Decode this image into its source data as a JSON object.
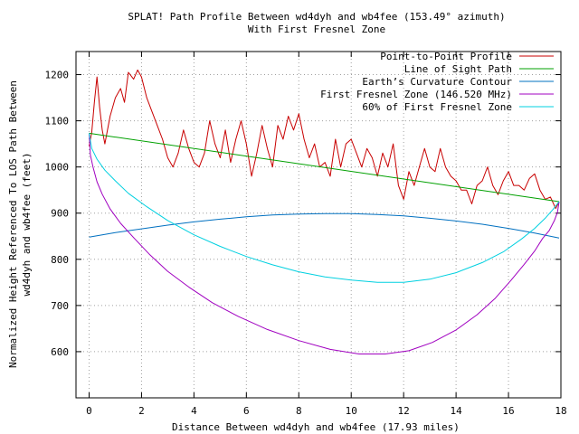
{
  "chart_data": {
    "type": "line",
    "title": "SPLAT! Path Profile Between wd4dyh and wb4fee (153.49° azimuth)",
    "subtitle": "With First Fresnel Zone",
    "xlabel": "Distance Between wd4dyh and wb4fee (17.93 miles)",
    "ylabel_lines": [
      "Normalized Height Referenced To LOS Path Between",
      "wd4dyh and wb4fee (feet)"
    ],
    "xlim": [
      -0.5,
      18
    ],
    "ylim": [
      500,
      1250
    ],
    "xticks": [
      "0",
      "2",
      "4",
      "6",
      "8",
      "10",
      "12",
      "14",
      "16",
      "18"
    ],
    "yticks": [
      "600",
      "700",
      "800",
      "900",
      "1000",
      "1100",
      "1200"
    ],
    "grid": true,
    "legend_position": "top-right",
    "series": [
      {
        "name": "Point-to-Point Profile",
        "color": "#c80000",
        "x": [
          0,
          0.1,
          0.2,
          0.3,
          0.4,
          0.5,
          0.6,
          0.8,
          1.0,
          1.2,
          1.35,
          1.5,
          1.7,
          1.85,
          2.0,
          2.2,
          2.4,
          2.6,
          2.8,
          3.0,
          3.2,
          3.4,
          3.6,
          3.8,
          4.0,
          4.2,
          4.4,
          4.6,
          4.8,
          5.0,
          5.2,
          5.4,
          5.6,
          5.8,
          6.0,
          6.2,
          6.4,
          6.6,
          6.8,
          7.0,
          7.2,
          7.4,
          7.6,
          7.8,
          8.0,
          8.2,
          8.4,
          8.6,
          8.8,
          9.0,
          9.2,
          9.4,
          9.6,
          9.8,
          10.0,
          10.2,
          10.4,
          10.6,
          10.8,
          11.0,
          11.2,
          11.4,
          11.6,
          11.8,
          12.0,
          12.2,
          12.4,
          12.6,
          12.8,
          13.0,
          13.2,
          13.4,
          13.6,
          13.8,
          14.0,
          14.2,
          14.4,
          14.6,
          14.8,
          15.0,
          15.2,
          15.4,
          15.6,
          15.8,
          16.0,
          16.2,
          16.4,
          16.6,
          16.8,
          17.0,
          17.2,
          17.4,
          17.6,
          17.8,
          17.93
        ],
        "y": [
          1045,
          1075,
          1140,
          1195,
          1130,
          1080,
          1050,
          1110,
          1150,
          1170,
          1140,
          1205,
          1190,
          1210,
          1195,
          1150,
          1120,
          1090,
          1060,
          1020,
          1000,
          1030,
          1080,
          1040,
          1010,
          1000,
          1030,
          1100,
          1050,
          1020,
          1080,
          1010,
          1060,
          1100,
          1050,
          980,
          1030,
          1090,
          1040,
          1000,
          1090,
          1060,
          1110,
          1080,
          1115,
          1060,
          1020,
          1050,
          1000,
          1010,
          980,
          1060,
          1000,
          1050,
          1060,
          1030,
          1000,
          1040,
          1020,
          980,
          1030,
          1000,
          1050,
          960,
          930,
          990,
          960,
          1000,
          1040,
          1000,
          990,
          1040,
          1000,
          980,
          970,
          950,
          950,
          920,
          960,
          970,
          1000,
          960,
          940,
          970,
          990,
          960,
          960,
          950,
          975,
          985,
          950,
          930,
          935,
          910,
          925
        ]
      },
      {
        "name": "Line of Sight Path",
        "color": "#00a000",
        "x": [
          0,
          17.93
        ],
        "y": [
          1073,
          925
        ]
      },
      {
        "name": "Earth’s Curvature Contour",
        "color": "#0070c0",
        "x": [
          0,
          1,
          2,
          3,
          4,
          5,
          6,
          7,
          8,
          9,
          10,
          11,
          12,
          13,
          14,
          15,
          16,
          17,
          17.93
        ],
        "y": [
          848,
          858,
          866,
          874,
          881,
          887,
          892,
          896,
          898,
          899,
          899,
          897,
          894,
          889,
          883,
          876,
          867,
          857,
          846
        ]
      },
      {
        "name": "First Fresnel Zone (146.520 MHz)",
        "color": "#a000c0",
        "x": [
          0,
          0.05,
          0.15,
          0.3,
          0.5,
          0.8,
          1.2,
          1.7,
          2.3,
          3.0,
          3.8,
          4.7,
          5.7,
          6.8,
          8.0,
          9.2,
          10.3,
          11.3,
          12.2,
          13.1,
          14.0,
          14.8,
          15.5,
          16.1,
          16.6,
          17.0,
          17.3,
          17.55,
          17.75,
          17.87,
          17.93
        ],
        "y": [
          1073,
          1026,
          1000,
          968,
          941,
          909,
          878,
          847,
          811,
          774,
          740,
          706,
          676,
          648,
          624,
          605,
          595,
          595,
          602,
          620,
          647,
          680,
          716,
          755,
          789,
          818,
          845,
          862,
          884,
          902,
          925
        ]
      },
      {
        "name": "60% of First Fresnel Zone",
        "color": "#00d0e0",
        "x": [
          0,
          0.1,
          0.3,
          0.6,
          1.0,
          1.5,
          2.2,
          3.0,
          4.0,
          5.0,
          6.0,
          7.0,
          8.0,
          9.0,
          10.0,
          11.0,
          12.0,
          13.0,
          14.0,
          15.0,
          15.8,
          16.5,
          17.0,
          17.4,
          17.7,
          17.93
        ],
        "y": [
          1073,
          1040,
          1017,
          993,
          970,
          943,
          914,
          884,
          853,
          828,
          806,
          788,
          773,
          762,
          755,
          750,
          750,
          757,
          771,
          793,
          816,
          844,
          867,
          889,
          908,
          925
        ]
      }
    ]
  }
}
